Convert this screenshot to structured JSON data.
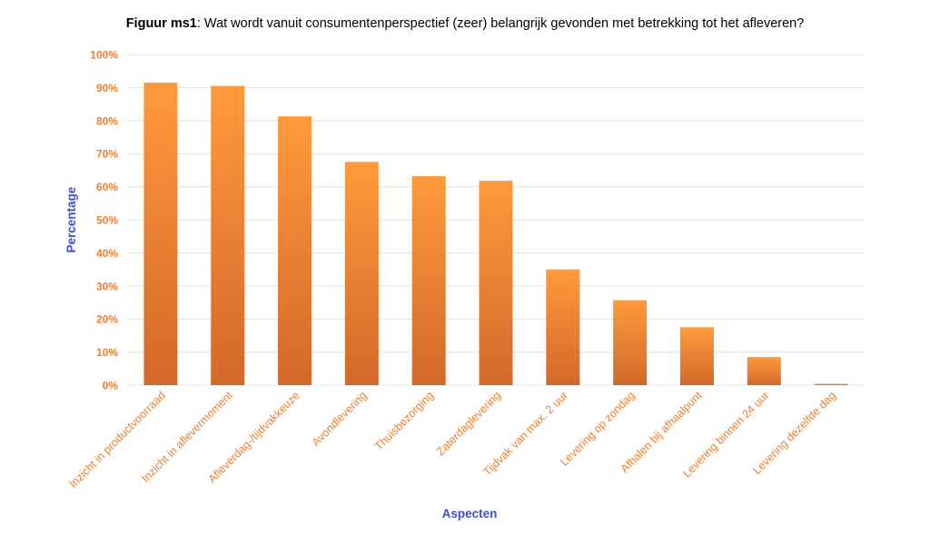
{
  "chart_data": {
    "type": "bar",
    "title_prefix": "Figuur ms1",
    "title": ": Wat wordt vanuit consumentenperspectief (zeer) belangrijk gevonden met betrekking tot het afleveren?",
    "xlabel": "Aspecten",
    "ylabel": "Percentage",
    "ylim": [
      0,
      100
    ],
    "yticks": [
      "0%",
      "10%",
      "20%",
      "30%",
      "40%",
      "50%",
      "60%",
      "70%",
      "80%",
      "90%",
      "100%"
    ],
    "categories": [
      "Inzicht in productvoorraad",
      "Inzicht in aflevermoment",
      "Afleverdag-/tijdvakkeuze",
      "Avondlevering",
      "Thuisbezorging",
      "Zaterdaglevering",
      "Tijdvak van max. 2 uur",
      "Levering op zondag",
      "Afhalen bij afhaalpunt",
      "Levering binnen 24 uur",
      "Levering dezelfde dag"
    ],
    "values": [
      91.5,
      90.5,
      81.3,
      67.5,
      63.2,
      61.8,
      35.0,
      25.7,
      17.5,
      8.5,
      0.4
    ],
    "grid": true,
    "colors": {
      "bar_top": "#FF9A3C",
      "bar_bottom": "#D2692A",
      "tick_label": "#F07F2E",
      "axis_title": "#3F4FC8",
      "grid": "#DCE3EC"
    }
  }
}
